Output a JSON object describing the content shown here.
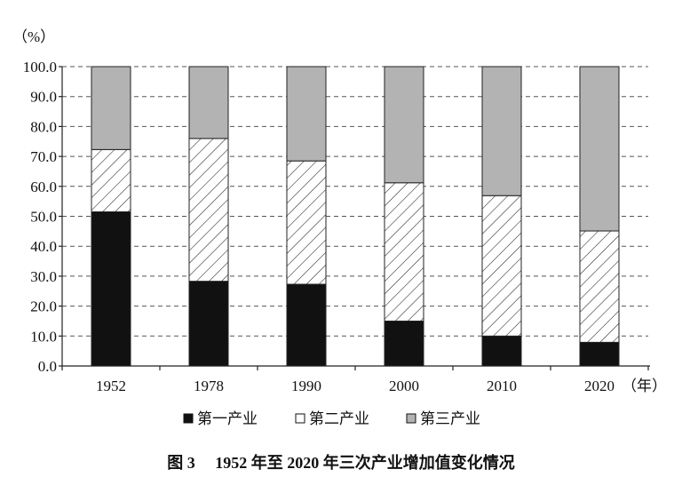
{
  "chart_data": {
    "type": "bar",
    "stacked": true,
    "figure_label": "图 3",
    "title": "1952 年至 2020 年三次产业增加值变化情况",
    "ylabel": "（%）",
    "xlabel": "（年）",
    "categories": [
      "1952",
      "1978",
      "1990",
      "2000",
      "2010",
      "2020"
    ],
    "series": [
      {
        "name": "第一产业",
        "values": [
          51.5,
          28.3,
          27.3,
          15.0,
          10.0,
          7.9
        ],
        "color": "#111111",
        "fill": "solid"
      },
      {
        "name": "第二产业",
        "values": [
          20.8,
          47.7,
          41.2,
          46.2,
          46.9,
          37.2
        ],
        "color": "#ffffff",
        "fill": "hatched"
      },
      {
        "name": "第三产业",
        "values": [
          27.7,
          24.0,
          31.5,
          38.8,
          43.1,
          54.9
        ],
        "color": "#b3b3b3",
        "fill": "solid"
      }
    ],
    "ylim": [
      0,
      100
    ],
    "yticks": [
      "0.0",
      "10.0",
      "20.0",
      "30.0",
      "40.0",
      "50.0",
      "60.0",
      "70.0",
      "80.0",
      "90.0",
      "100.0"
    ],
    "grid": true,
    "grid_style": "dashed",
    "legend_position": "bottom"
  }
}
